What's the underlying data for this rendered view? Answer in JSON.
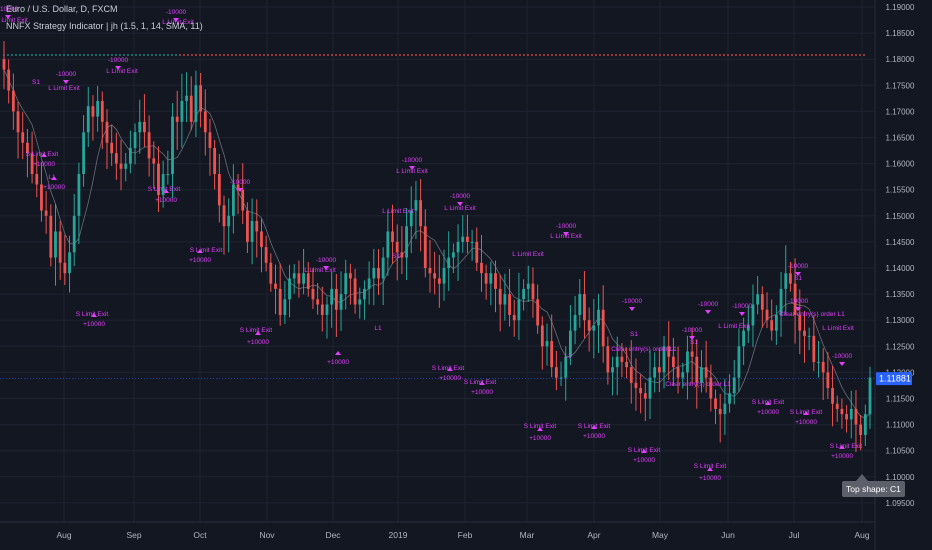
{
  "legend": {
    "symbol_line": "Euro / U.S. Dollar, D, FXCM",
    "indicator_line": "NNFX Strategy Indicator | jh (1.5, 1, 14, SMA, 11)"
  },
  "tooltip": "Top shape: C1",
  "colors": {
    "background": "#131722",
    "grid": "#1f2330",
    "axis_text": "#b2b5be",
    "bull": "#26a69a",
    "bear": "#ef5350",
    "signal": "#e040fb",
    "ma": "#6a6d78",
    "price_label_bg": "#2962ff",
    "dots_green": "#26a69a",
    "dots_red": "#ef5350"
  },
  "chart_data": {
    "type": "candlestick",
    "title": "Euro / U.S. Dollar, D, FXCM",
    "ylim": [
      1.095,
      1.19
    ],
    "y_ticks": [
      "1.19000",
      "1.18500",
      "1.18000",
      "1.17500",
      "1.17000",
      "1.16500",
      "1.16000",
      "1.15500",
      "1.15000",
      "1.14500",
      "1.14000",
      "1.13500",
      "1.13000",
      "1.12500",
      "1.12000",
      "1.11500",
      "1.11000",
      "1.10500",
      "1.10000",
      "1.09500"
    ],
    "x_ticks": [
      "Aug",
      "Sep",
      "Oct",
      "Nov",
      "Dec",
      "2019",
      "Feb",
      "Mar",
      "Apr",
      "May",
      "Jun",
      "Jul",
      "Aug"
    ],
    "last_price": "1.11881",
    "reference_level": 1.1808,
    "close_path": [
      1.178,
      1.174,
      1.17,
      1.166,
      1.164,
      1.162,
      1.158,
      1.156,
      1.151,
      1.15,
      1.142,
      1.147,
      1.141,
      1.139,
      1.143,
      1.15,
      1.158,
      1.166,
      1.171,
      1.169,
      1.172,
      1.168,
      1.164,
      1.162,
      1.16,
      1.159,
      1.16,
      1.163,
      1.166,
      1.168,
      1.166,
      1.161,
      1.16,
      1.154,
      1.158,
      1.158,
      1.169,
      1.168,
      1.172,
      1.173,
      1.168,
      1.175,
      1.17,
      1.166,
      1.163,
      1.158,
      1.152,
      1.148,
      1.15,
      1.156,
      1.155,
      1.151,
      1.145,
      1.149,
      1.147,
      1.144,
      1.141,
      1.137,
      1.136,
      1.131,
      1.134,
      1.138,
      1.139,
      1.137,
      1.139,
      1.136,
      1.134,
      1.133,
      1.131,
      1.133,
      1.136,
      1.132,
      1.135,
      1.139,
      1.138,
      1.133,
      1.134,
      1.136,
      1.138,
      1.14,
      1.138,
      1.142,
      1.147,
      1.145,
      1.143,
      1.142,
      1.148,
      1.151,
      1.153,
      1.148,
      1.14,
      1.139,
      1.138,
      1.137,
      1.14,
      1.142,
      1.143,
      1.145,
      1.146,
      1.145,
      1.145,
      1.141,
      1.139,
      1.137,
      1.139,
      1.136,
      1.133,
      1.135,
      1.131,
      1.13,
      1.134,
      1.136,
      1.137,
      1.134,
      1.129,
      1.125,
      1.126,
      1.121,
      1.119,
      1.119,
      1.123,
      1.128,
      1.131,
      1.135,
      1.13,
      1.128,
      1.129,
      1.132,
      1.125,
      1.12,
      1.121,
      1.123,
      1.122,
      1.121,
      1.118,
      1.117,
      1.116,
      1.115,
      1.119,
      1.121,
      1.12,
      1.125,
      1.123,
      1.121,
      1.119,
      1.12,
      1.124,
      1.123,
      1.118,
      1.121,
      1.119,
      1.115,
      1.113,
      1.112,
      1.114,
      1.116,
      1.119,
      1.125,
      1.128,
      1.129,
      1.133,
      1.135,
      1.132,
      1.13,
      1.128,
      1.131,
      1.136,
      1.139,
      1.137,
      1.131,
      1.128,
      1.127,
      1.127,
      1.122,
      1.122,
      1.12,
      1.117,
      1.114,
      1.113,
      1.112,
      1.111,
      1.113,
      1.11,
      1.108,
      1.112,
      1.119
    ],
    "annotations": [
      {
        "text": "-10000",
        "x": 8,
        "y": 5,
        "color": "signal"
      },
      {
        "text": "L Limit Exit",
        "x": 12,
        "y": 16,
        "color": "signal"
      },
      {
        "text": "L Limit Exit",
        "x": 178,
        "y": 18,
        "color": "signal"
      },
      {
        "text": "-10000",
        "x": 176,
        "y": 8,
        "color": "signal"
      },
      {
        "text": "-10000",
        "x": 118,
        "y": 56,
        "color": "signal"
      },
      {
        "text": "L Limit Exit",
        "x": 122,
        "y": 67,
        "color": "signal"
      },
      {
        "text": "-10000",
        "x": 66,
        "y": 70,
        "color": "signal"
      },
      {
        "text": "S1",
        "x": 36,
        "y": 78,
        "color": "signal"
      },
      {
        "text": "L Limit Exit",
        "x": 64,
        "y": 84,
        "color": "signal"
      },
      {
        "text": "S Limit Exit",
        "x": 42,
        "y": 150,
        "color": "signal"
      },
      {
        "text": "+10000",
        "x": 44,
        "y": 160,
        "color": "signal"
      },
      {
        "text": "L1",
        "x": 52,
        "y": 173,
        "color": "signal"
      },
      {
        "text": "+10000",
        "x": 54,
        "y": 183,
        "color": "signal"
      },
      {
        "text": "S Limit Exit",
        "x": 164,
        "y": 185,
        "color": "signal"
      },
      {
        "text": "+10000",
        "x": 166,
        "y": 196,
        "color": "signal"
      },
      {
        "text": "-10000",
        "x": 240,
        "y": 178,
        "color": "signal"
      },
      {
        "text": "S Limit Exit",
        "x": 206,
        "y": 246,
        "color": "signal"
      },
      {
        "text": "+10000",
        "x": 200,
        "y": 256,
        "color": "signal"
      },
      {
        "text": "S Limit Exit",
        "x": 92,
        "y": 310,
        "color": "signal"
      },
      {
        "text": "+10000",
        "x": 94,
        "y": 320,
        "color": "signal"
      },
      {
        "text": "-10000",
        "x": 412,
        "y": 156,
        "color": "signal"
      },
      {
        "text": "L Limit Exit",
        "x": 412,
        "y": 167,
        "color": "signal"
      },
      {
        "text": "-10000",
        "x": 460,
        "y": 192,
        "color": "signal"
      },
      {
        "text": "L Limit Exit",
        "x": 398,
        "y": 207,
        "color": "signal"
      },
      {
        "text": "L Limit Exit",
        "x": 460,
        "y": 204,
        "color": "signal"
      },
      {
        "text": "-10000",
        "x": 326,
        "y": 256,
        "color": "signal"
      },
      {
        "text": "L Limit Exit",
        "x": 320,
        "y": 266,
        "color": "signal"
      },
      {
        "text": "-10000",
        "x": 566,
        "y": 222,
        "color": "signal"
      },
      {
        "text": "L Limit Exit",
        "x": 566,
        "y": 232,
        "color": "signal"
      },
      {
        "text": "L Limit Exit",
        "x": 528,
        "y": 250,
        "color": "signal"
      },
      {
        "text": "S1",
        "x": 396,
        "y": 252,
        "color": "signal"
      },
      {
        "text": "-10000",
        "x": 632,
        "y": 297,
        "color": "signal"
      },
      {
        "text": "-10000",
        "x": 708,
        "y": 300,
        "color": "signal"
      },
      {
        "text": "-10000",
        "x": 742,
        "y": 302,
        "color": "signal"
      },
      {
        "text": "-10000",
        "x": 798,
        "y": 262,
        "color": "signal"
      },
      {
        "text": "S1",
        "x": 798,
        "y": 274,
        "color": "signal"
      },
      {
        "text": "-10000",
        "x": 798,
        "y": 297,
        "color": "signal"
      },
      {
        "text": "Clear entry(s) order L1",
        "x": 812,
        "y": 310,
        "color": "signal"
      },
      {
        "text": "L Limit Exit",
        "x": 838,
        "y": 324,
        "color": "signal"
      },
      {
        "text": "L Limit Exit",
        "x": 734,
        "y": 322,
        "color": "signal"
      },
      {
        "text": "-10000",
        "x": 692,
        "y": 326,
        "color": "signal"
      },
      {
        "text": "S1",
        "x": 694,
        "y": 338,
        "color": "signal"
      },
      {
        "text": "S1",
        "x": 634,
        "y": 330,
        "color": "signal"
      },
      {
        "text": "Clear entry(s) order L1",
        "x": 644,
        "y": 345,
        "color": "signal"
      },
      {
        "text": "-10000",
        "x": 842,
        "y": 352,
        "color": "signal"
      },
      {
        "text": "Clear entry(s) order L1",
        "x": 698,
        "y": 380,
        "color": "signal"
      },
      {
        "text": "L1",
        "x": 378,
        "y": 324,
        "color": "signal"
      },
      {
        "text": "L1",
        "x": 568,
        "y": 352,
        "color": "signal"
      },
      {
        "text": "S Limit Exit",
        "x": 256,
        "y": 326,
        "color": "signal"
      },
      {
        "text": "+10000",
        "x": 258,
        "y": 338,
        "color": "signal"
      },
      {
        "text": "+10000",
        "x": 338,
        "y": 358,
        "color": "signal"
      },
      {
        "text": "S Limit Exit",
        "x": 448,
        "y": 364,
        "color": "signal"
      },
      {
        "text": "+10000",
        "x": 450,
        "y": 374,
        "color": "signal"
      },
      {
        "text": "S Limit Exit",
        "x": 480,
        "y": 378,
        "color": "signal"
      },
      {
        "text": "+10000",
        "x": 482,
        "y": 388,
        "color": "signal"
      },
      {
        "text": "S Limit Exit",
        "x": 768,
        "y": 398,
        "color": "signal"
      },
      {
        "text": "+10000",
        "x": 768,
        "y": 408,
        "color": "signal"
      },
      {
        "text": "S Limit Exit",
        "x": 806,
        "y": 408,
        "color": "signal"
      },
      {
        "text": "+10000",
        "x": 806,
        "y": 418,
        "color": "signal"
      },
      {
        "text": "S Limit Exit",
        "x": 540,
        "y": 422,
        "color": "signal"
      },
      {
        "text": "+10000",
        "x": 540,
        "y": 434,
        "color": "signal"
      },
      {
        "text": "S Limit Exit",
        "x": 594,
        "y": 422,
        "color": "signal"
      },
      {
        "text": "+10000",
        "x": 594,
        "y": 432,
        "color": "signal"
      },
      {
        "text": "S Limit Exit",
        "x": 644,
        "y": 446,
        "color": "signal"
      },
      {
        "text": "+10000",
        "x": 644,
        "y": 456,
        "color": "signal"
      },
      {
        "text": "S Limit Exit",
        "x": 710,
        "y": 462,
        "color": "signal"
      },
      {
        "text": "+10000",
        "x": 710,
        "y": 474,
        "color": "signal"
      },
      {
        "text": "S Limit Exit",
        "x": 846,
        "y": 442,
        "color": "signal"
      },
      {
        "text": "+10000",
        "x": 842,
        "y": 452,
        "color": "signal"
      }
    ]
  }
}
